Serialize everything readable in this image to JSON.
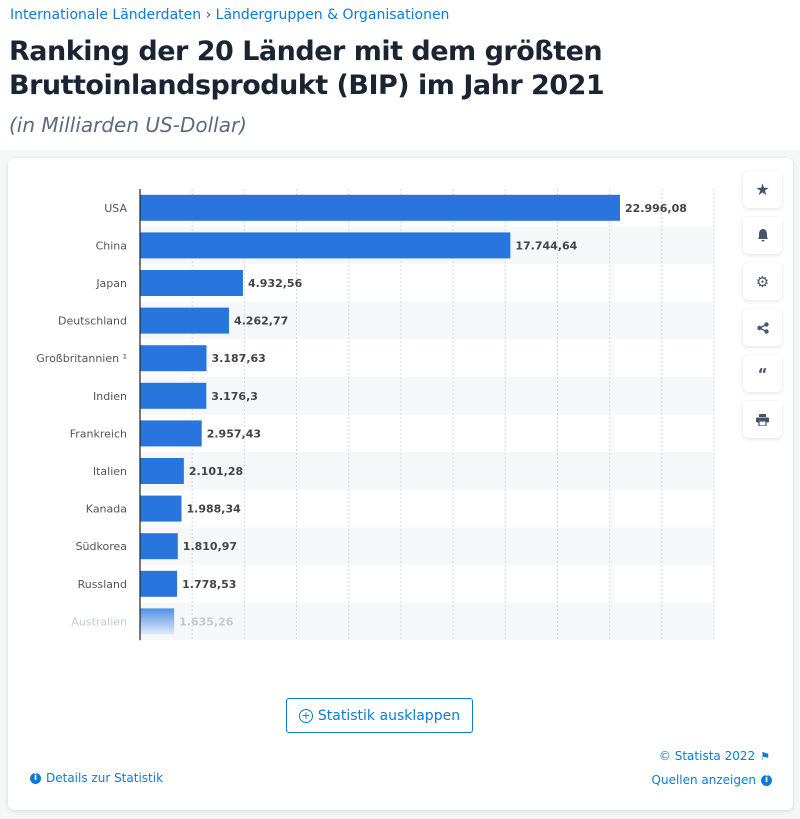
{
  "breadcrumb": {
    "items": [
      "Internationale Länderdaten",
      "Ländergruppen & Organisationen"
    ],
    "separator": "›"
  },
  "header": {
    "title_line1": "Ranking der 20 Länder mit dem größten",
    "title_line2": "Bruttoinlandsprodukt (BIP) im Jahr 2021",
    "subtitle": "(in Milliarden US-Dollar)"
  },
  "sidebar": {
    "icons": [
      "star-icon",
      "bell-icon",
      "gear-icon",
      "share-icon",
      "quote-icon",
      "print-icon"
    ]
  },
  "chart_data": {
    "type": "bar",
    "orientation": "horizontal",
    "categories": [
      "USA",
      "China",
      "Japan",
      "Deutschland",
      "Großbritannien ¹",
      "Indien",
      "Frankreich",
      "Italien",
      "Kanada",
      "Südkorea",
      "Russland",
      "Australien"
    ],
    "values": [
      22996.08,
      17744.64,
      4932.56,
      4262.77,
      3187.63,
      3176.3,
      2957.43,
      2101.28,
      1988.34,
      1810.97,
      1778.53,
      1635.26
    ],
    "data_labels": [
      "22.996,08",
      "17.744,64",
      "4.932,56",
      "4.262,77",
      "3.187,63",
      "3.176,3",
      "2.957,43",
      "2.101,28",
      "1.988,34",
      "1.810,97",
      "1.778,53",
      "1.635,26"
    ],
    "xlim": [
      0,
      27500
    ],
    "grid": true,
    "bar_color": "#2876dd",
    "faded_last_row": true
  },
  "footer": {
    "expand_label": "Statistik ausklappen",
    "copyright": "© Statista 2022",
    "details": "Details zur Statistik",
    "sources": "Quellen anzeigen"
  }
}
